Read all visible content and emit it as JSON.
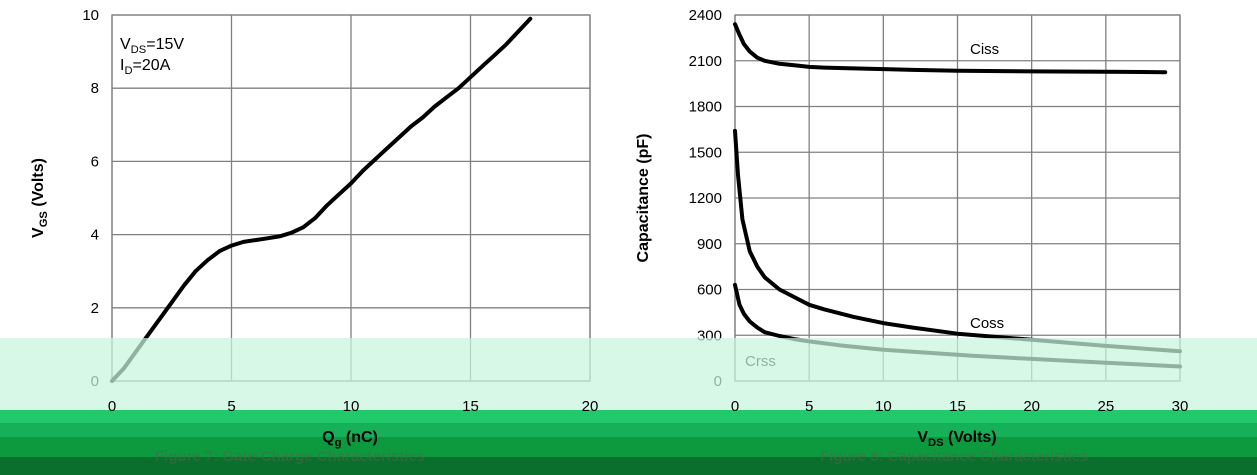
{
  "chart_data": [
    {
      "type": "line",
      "title": "",
      "caption": "Figure 7: Gate-Charge Characteristics",
      "xlabel": "Qg (nC)",
      "ylabel": "VGS (Volts)",
      "xlim": [
        0,
        20
      ],
      "ylim": [
        0,
        10
      ],
      "xticks": [
        "0",
        "5",
        "10",
        "15",
        "20"
      ],
      "yticks": [
        "0",
        "2",
        "4",
        "6",
        "8",
        "10"
      ],
      "grid": true,
      "annotations": [
        "VDS=15V",
        "ID=20A"
      ],
      "series": [
        {
          "x": [
            0,
            0.5,
            1,
            1.5,
            2,
            2.5,
            3,
            3.5,
            4,
            4.5,
            5,
            5.5,
            6,
            6.5,
            7,
            7.5,
            8,
            8.5,
            9,
            9.5,
            10,
            10.5,
            11,
            11.5,
            12,
            12.5,
            13,
            13.5,
            14,
            14.5,
            15,
            15.5,
            16,
            16.5,
            17,
            17.5
          ],
          "values": [
            0,
            0.35,
            0.8,
            1.25,
            1.7,
            2.15,
            2.6,
            3.0,
            3.3,
            3.55,
            3.7,
            3.8,
            3.85,
            3.9,
            3.95,
            4.05,
            4.2,
            4.45,
            4.8,
            5.1,
            5.4,
            5.75,
            6.05,
            6.35,
            6.65,
            6.95,
            7.2,
            7.5,
            7.75,
            8.0,
            8.3,
            8.6,
            8.9,
            9.2,
            9.55,
            9.9
          ]
        }
      ]
    },
    {
      "type": "line",
      "title": "",
      "caption": "Figure 8: Capacitance Characteristics",
      "xlabel": "VDS (Volts)",
      "ylabel": "Capacitance (pF)",
      "xlim": [
        0,
        30
      ],
      "ylim": [
        0,
        2400
      ],
      "xticks": [
        "0",
        "5",
        "10",
        "15",
        "20",
        "25",
        "30"
      ],
      "yticks": [
        "0",
        "300",
        "600",
        "900",
        "1200",
        "1500",
        "1800",
        "2100",
        "2400"
      ],
      "grid": true,
      "series": [
        {
          "name": "Ciss",
          "x": [
            0,
            0.3,
            0.6,
            1,
            1.5,
            2,
            3,
            4,
            5,
            6,
            8,
            10,
            12,
            15,
            20,
            25,
            29
          ],
          "values": [
            2340,
            2270,
            2210,
            2160,
            2120,
            2100,
            2080,
            2070,
            2060,
            2055,
            2050,
            2045,
            2040,
            2035,
            2030,
            2028,
            2025
          ]
        },
        {
          "name": "Coss",
          "x": [
            0,
            0.2,
            0.5,
            1,
            1.5,
            2,
            3,
            4,
            5,
            6,
            8,
            10,
            12,
            15,
            20,
            25,
            30
          ],
          "values": [
            1640,
            1350,
            1060,
            850,
            750,
            680,
            600,
            550,
            500,
            470,
            420,
            380,
            350,
            310,
            270,
            230,
            195
          ]
        },
        {
          "name": "Crss",
          "x": [
            0,
            0.3,
            0.6,
            1,
            1.5,
            2,
            3,
            4,
            5,
            7,
            10,
            13,
            16,
            20,
            25,
            30
          ],
          "values": [
            630,
            500,
            440,
            390,
            350,
            320,
            295,
            275,
            260,
            235,
            205,
            185,
            165,
            145,
            120,
            95
          ]
        }
      ]
    }
  ]
}
